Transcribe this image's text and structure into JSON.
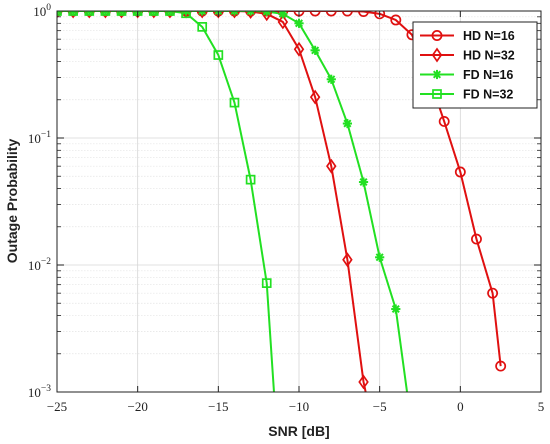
{
  "chart_data": {
    "type": "line",
    "xlabel": "SNR [dB]",
    "ylabel": "Outage Probability",
    "xlim": [
      -25,
      5
    ],
    "ylim": [
      0.001,
      1
    ],
    "yscale": "log",
    "grid": true,
    "legend_position": "top-right",
    "x_ticks": [
      {
        "value": -25,
        "label": "−25"
      },
      {
        "value": -20,
        "label": "−20"
      },
      {
        "value": -15,
        "label": "−15"
      },
      {
        "value": -10,
        "label": "−10"
      },
      {
        "value": -5,
        "label": "−5"
      },
      {
        "value": 0,
        "label": "0"
      },
      {
        "value": 5,
        "label": "5"
      }
    ],
    "y_ticks": [
      {
        "value": 1,
        "base": "10",
        "exp": "0"
      },
      {
        "value": 0.1,
        "base": "10",
        "exp": "−1"
      },
      {
        "value": 0.01,
        "base": "10",
        "exp": "−2"
      },
      {
        "value": 0.001,
        "base": "10",
        "exp": "−3"
      }
    ],
    "series": [
      {
        "name": "HD N=16",
        "color": "#e01010",
        "marker": "circle",
        "x": [
          -25,
          -24,
          -23,
          -22,
          -21,
          -20,
          -19,
          -18,
          -17,
          -16,
          -15,
          -14,
          -13,
          -12,
          -11,
          -10,
          -9,
          -8,
          -7,
          -6,
          -5,
          -4,
          -3,
          -2,
          -1,
          0,
          1,
          2,
          2.5
        ],
        "y": [
          1,
          1,
          1,
          1,
          1,
          1,
          1,
          1,
          1,
          1,
          1,
          1,
          1,
          1,
          1,
          1,
          1,
          1,
          0.999,
          0.99,
          0.95,
          0.85,
          0.65,
          0.32,
          0.135,
          0.054,
          0.016,
          0.006,
          0.0016
        ]
      },
      {
        "name": "HD N=32",
        "color": "#e01010",
        "marker": "diamond",
        "x": [
          -25,
          -24,
          -23,
          -22,
          -21,
          -20,
          -19,
          -18,
          -17,
          -16,
          -15,
          -14,
          -13,
          -12,
          -11,
          -10,
          -9,
          -8,
          -7,
          -6,
          -5.5
        ],
        "y": [
          1,
          1,
          1,
          1,
          1,
          1,
          1,
          1,
          1,
          1,
          1,
          1,
          0.99,
          0.95,
          0.82,
          0.5,
          0.21,
          0.06,
          0.011,
          0.0012,
          0.0006
        ]
      },
      {
        "name": "FD N=16",
        "color": "#22e022",
        "marker": "star",
        "x": [
          -25,
          -24,
          -23,
          -22,
          -21,
          -20,
          -19,
          -18,
          -17,
          -16,
          -15,
          -14,
          -13,
          -12,
          -11,
          -10,
          -9,
          -8,
          -7,
          -6,
          -5,
          -4,
          -3.2
        ],
        "y": [
          1,
          1,
          1,
          1,
          1,
          1,
          1,
          1,
          1,
          1,
          1,
          1,
          1,
          0.99,
          0.95,
          0.8,
          0.49,
          0.29,
          0.13,
          0.045,
          0.0115,
          0.0045,
          0.0008
        ]
      },
      {
        "name": "FD N=32",
        "color": "#22e022",
        "marker": "square",
        "x": [
          -25,
          -24,
          -23,
          -22,
          -21,
          -20,
          -19,
          -18,
          -17,
          -16,
          -15,
          -14,
          -13,
          -12,
          -11.5
        ],
        "y": [
          1,
          1,
          1,
          1,
          1,
          1,
          1,
          1,
          0.96,
          0.75,
          0.45,
          0.19,
          0.047,
          0.0072,
          0.0008
        ]
      }
    ]
  }
}
